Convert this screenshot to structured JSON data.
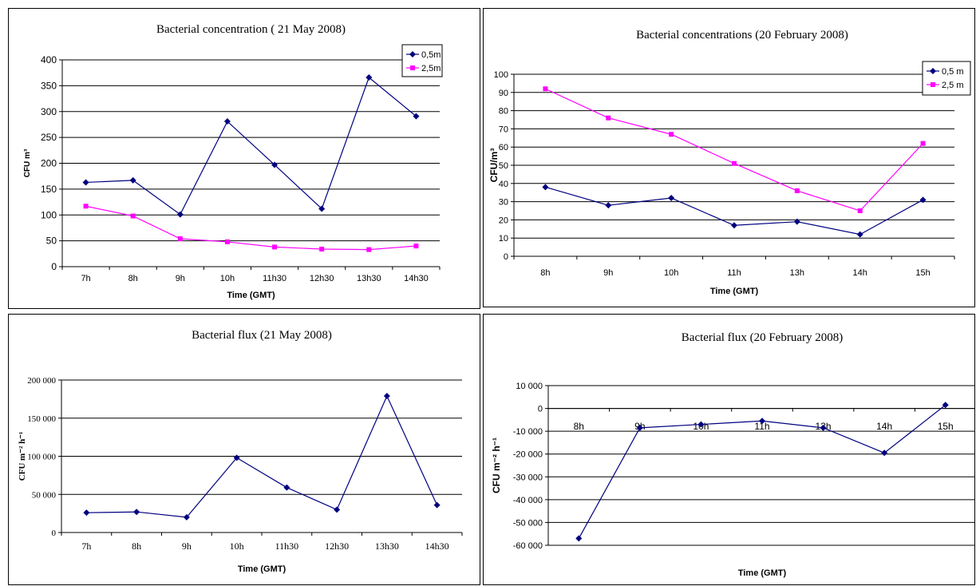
{
  "chart_data": [
    {
      "type": "line",
      "title": "Bacterial concentration ( 21 May 2008)",
      "xlabel": "Time (GMT)",
      "ylabel": "CFU m³",
      "categories": [
        "7h",
        "8h",
        "9h",
        "10h",
        "11h30",
        "12h30",
        "13h30",
        "14h30"
      ],
      "ylim": [
        0,
        400
      ],
      "yticks": [
        "0",
        "50",
        "100",
        "150",
        "200",
        "250",
        "300",
        "350",
        "400"
      ],
      "grid": true,
      "legend": "top-right",
      "series": [
        {
          "name": "0,5m",
          "color": "#000080",
          "marker": "diamond",
          "values": [
            163,
            167,
            101,
            281,
            197,
            112,
            366,
            291
          ]
        },
        {
          "name": "2,5m",
          "color": "#ff00ff",
          "marker": "square",
          "values": [
            117,
            98,
            54,
            48,
            38,
            34,
            33,
            40
          ]
        }
      ]
    },
    {
      "type": "line",
      "title": "Bacterial concentrations (20 February 2008)",
      "xlabel": "Time (GMT)",
      "ylabel": "CFU/m³",
      "categories": [
        "8h",
        "9h",
        "10h",
        "11h",
        "13h",
        "14h",
        "15h"
      ],
      "ylim": [
        0,
        100
      ],
      "yticks": [
        "0",
        "10",
        "20",
        "30",
        "40",
        "50",
        "60",
        "70",
        "80",
        "90",
        "100"
      ],
      "grid": true,
      "legend": "top-right",
      "series": [
        {
          "name": "0,5 m",
          "color": "#000080",
          "marker": "diamond",
          "values": [
            38,
            28,
            32,
            17,
            19,
            12,
            31
          ]
        },
        {
          "name": "2,5 m",
          "color": "#ff00ff",
          "marker": "square",
          "values": [
            92,
            76,
            67,
            51,
            36,
            25,
            62
          ]
        }
      ]
    },
    {
      "type": "line",
      "title": "Bacterial flux (21 May 2008)",
      "xlabel": "Time (GMT)",
      "ylabel": "CFU m⁻² h⁻¹",
      "categories": [
        "7h",
        "8h",
        "9h",
        "10h",
        "11h30",
        "12h30",
        "13h30",
        "14h30"
      ],
      "ylim": [
        0,
        200000
      ],
      "yticks": [
        "0",
        "50 000",
        "100 000",
        "150 000",
        "200 000"
      ],
      "grid": true,
      "series": [
        {
          "color": "#000080",
          "marker": "diamond",
          "values": [
            26000,
            27000,
            20000,
            98000,
            59000,
            30000,
            179000,
            36000
          ]
        }
      ]
    },
    {
      "type": "line",
      "title": "Bacterial flux (20 February 2008)",
      "xlabel": "Time (GMT)",
      "ylabel": "CFU m⁻² h⁻¹",
      "categories": [
        "8h",
        "9h",
        "10h",
        "11h",
        "13h",
        "14h",
        "15h"
      ],
      "ylim": [
        -60000,
        10000
      ],
      "yticks": [
        "-60 000",
        "-50 000",
        "-40 000",
        "-30 000",
        "-20 000",
        "-10 000",
        "0",
        "10 000"
      ],
      "grid": true,
      "series": [
        {
          "color": "#000080",
          "marker": "diamond",
          "values": [
            -57000,
            -8500,
            -7000,
            -5500,
            -8500,
            -19500,
            1500
          ]
        }
      ]
    }
  ]
}
